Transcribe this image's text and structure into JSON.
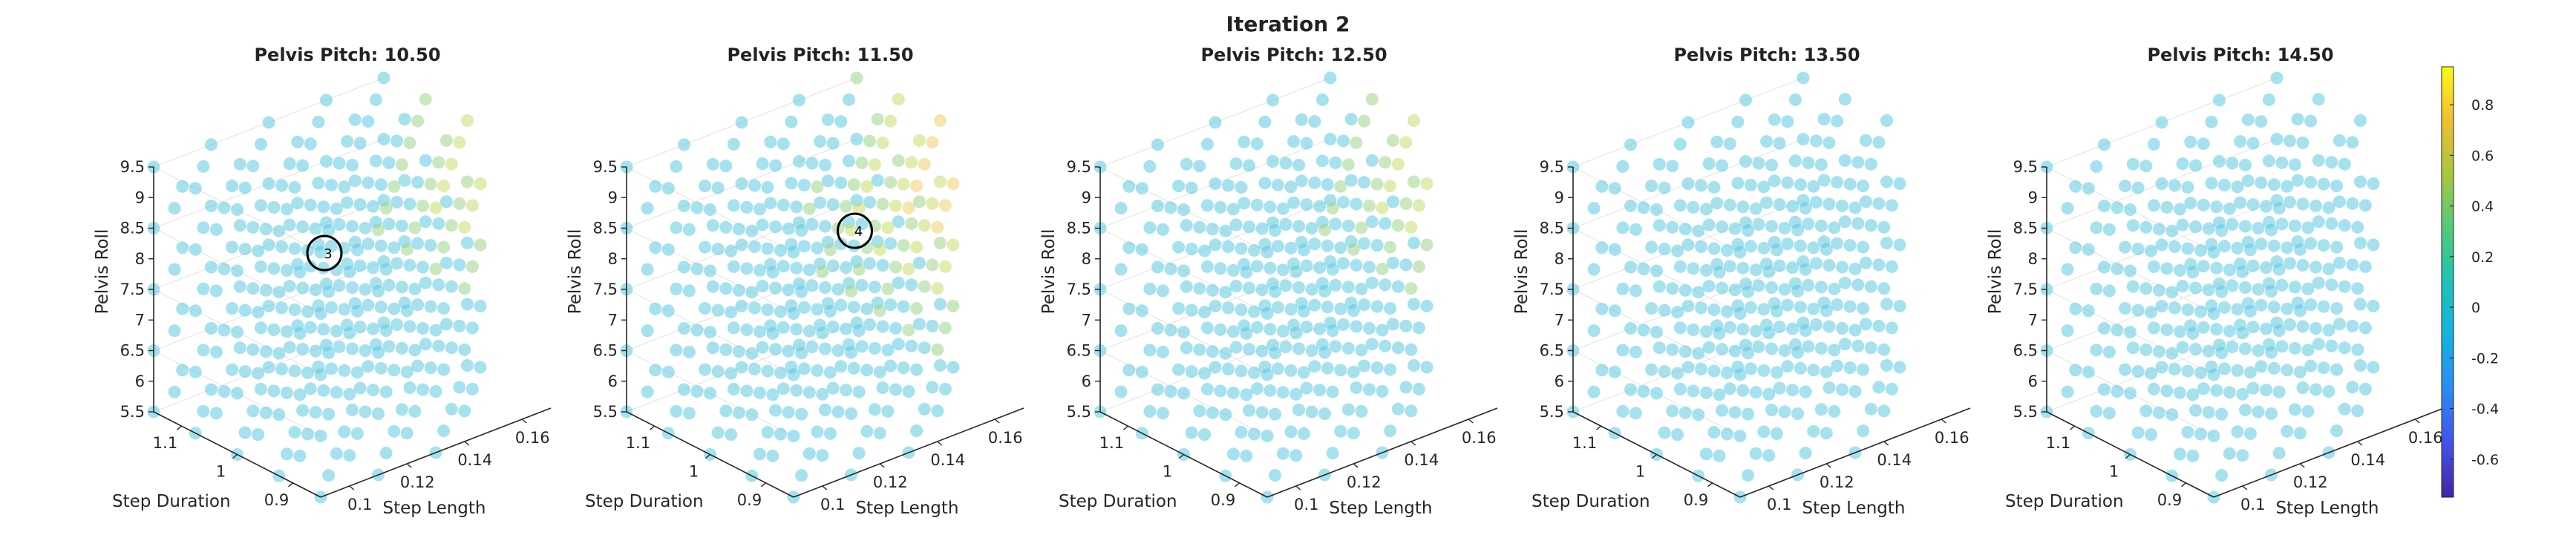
{
  "figure": {
    "title": "Iteration 2"
  },
  "colors": {
    "grid_point": "#5cc8e0",
    "highlight_low": "#9fd68a",
    "highlight_mid": "#c9dc6e",
    "highlight_high": "#f0d070",
    "axis_line": "#262626",
    "marker_ring": "#000000"
  },
  "chart_data": [
    {
      "type": "scatter",
      "title": "Pelvis Pitch: 10.50",
      "xlabel": "Step Length",
      "ylabel": "Step Duration",
      "zlabel": "Pelvis Roll",
      "x_ticks": [
        "0.1",
        "0.12",
        "0.14",
        "0.16"
      ],
      "y_ticks": [
        "0.9",
        "1",
        "1.1"
      ],
      "z_ticks": [
        "5.5",
        "6",
        "6.5",
        "7",
        "7.5",
        "8",
        "8.5",
        "9",
        "9.5"
      ],
      "xlim": [
        0.09,
        0.17
      ],
      "ylim": [
        0.85,
        1.15
      ],
      "zlim": [
        5.5,
        9.5
      ],
      "grid_points": "uniform 3D lattice of sampled parameter combinations, mostly near 0 on the colour scale",
      "marker": {
        "label": "3",
        "x": 0.09,
        "y": 0.85,
        "z": 9.5
      },
      "highlight_region": "upper-right corner (high Step Length, high Pelvis Roll) shows values ~0.3–0.5"
    },
    {
      "type": "scatter",
      "title": "Pelvis Pitch: 11.50",
      "xlabel": "Step Length",
      "ylabel": "Step Duration",
      "zlabel": "Pelvis Roll",
      "x_ticks": [
        "0.1",
        "0.12",
        "0.14",
        "0.16"
      ],
      "y_ticks": [
        "0.9",
        "1",
        "1.1"
      ],
      "z_ticks": [
        "5.5",
        "6",
        "6.5",
        "7",
        "7.5",
        "8",
        "8.5",
        "9",
        "9.5"
      ],
      "xlim": [
        0.09,
        0.17
      ],
      "ylim": [
        0.85,
        1.15
      ],
      "zlim": [
        5.5,
        9.5
      ],
      "marker": {
        "label": "4",
        "x": 0.11,
        "y": 0.85,
        "z": 9.5
      },
      "highlight_region": "upper-right corner shows values ~0.4–0.7"
    },
    {
      "type": "scatter",
      "title": "Pelvis Pitch: 12.50",
      "xlabel": "Step Length",
      "ylabel": "Step Duration",
      "zlabel": "Pelvis Roll",
      "x_ticks": [
        "0.1",
        "0.12",
        "0.14",
        "0.16"
      ],
      "y_ticks": [
        "0.9",
        "1",
        "1.1"
      ],
      "z_ticks": [
        "5.5",
        "6",
        "6.5",
        "7",
        "7.5",
        "8",
        "8.5",
        "9",
        "9.5"
      ],
      "xlim": [
        0.09,
        0.17
      ],
      "ylim": [
        0.85,
        1.15
      ],
      "zlim": [
        5.5,
        9.5
      ],
      "highlight_region": "upper-right corner shows values ~0.3–0.5"
    },
    {
      "type": "scatter",
      "title": "Pelvis Pitch: 13.50",
      "xlabel": "Step Length",
      "ylabel": "Step Duration",
      "zlabel": "Pelvis Roll",
      "x_ticks": [
        "0.1",
        "0.12",
        "0.14",
        "0.16"
      ],
      "y_ticks": [
        "0.9",
        "1",
        "1.1"
      ],
      "z_ticks": [
        "5.5",
        "6",
        "6.5",
        "7",
        "7.5",
        "8",
        "8.5",
        "9",
        "9.5"
      ],
      "xlim": [
        0.09,
        0.17
      ],
      "ylim": [
        0.85,
        1.15
      ],
      "zlim": [
        5.5,
        9.5
      ]
    },
    {
      "type": "scatter",
      "title": "Pelvis Pitch: 14.50",
      "xlabel": "Step Length",
      "ylabel": "Step Duration",
      "zlabel": "Pelvis Roll",
      "x_ticks": [
        "0.1",
        "0.12",
        "0.14",
        "0.16"
      ],
      "y_ticks": [
        "0.9",
        "1",
        "1.1"
      ],
      "z_ticks": [
        "5.5",
        "6",
        "6.5",
        "7",
        "7.5",
        "8",
        "8.5",
        "9",
        "9.5"
      ],
      "xlim": [
        0.09,
        0.17
      ],
      "ylim": [
        0.85,
        1.15
      ],
      "zlim": [
        5.5,
        9.5
      ]
    }
  ],
  "colorbar": {
    "ticks": [
      "0.8",
      "0.6",
      "0.4",
      "0.2",
      "0",
      "-0.2",
      "-0.4",
      "-0.6"
    ],
    "range": [
      -0.75,
      0.95
    ],
    "colormap": "parula"
  }
}
